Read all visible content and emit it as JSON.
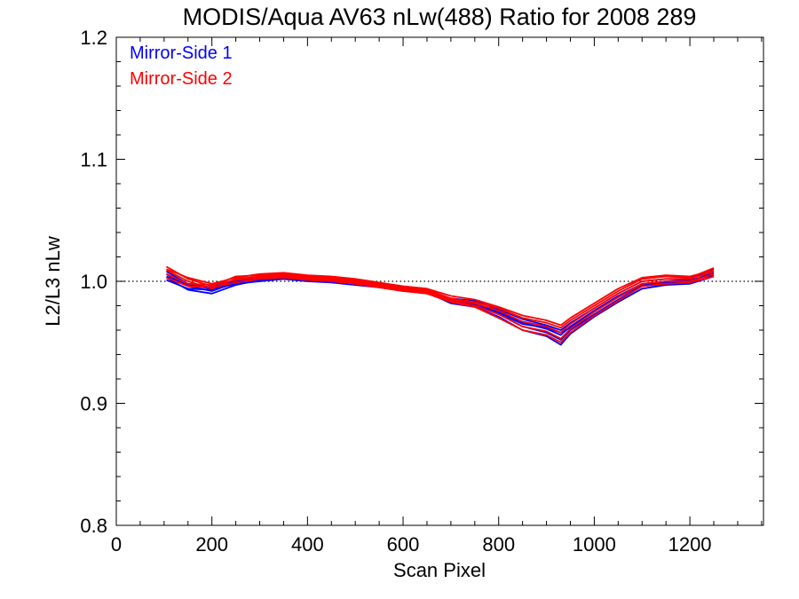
{
  "chart_data": {
    "type": "line",
    "title": "MODIS/Aqua AV63 nLw(488) Ratio for 2008 289",
    "xlabel": "Scan Pixel",
    "ylabel": "L2/L3 nLw",
    "xlim": [
      0,
      1354
    ],
    "ylim": [
      0.8,
      1.2
    ],
    "x_ticks": [
      0,
      200,
      400,
      600,
      800,
      1000,
      1200
    ],
    "x_tick_labels": [
      "0",
      "200",
      "400",
      "600",
      "800",
      "1000",
      "1200"
    ],
    "y_ticks": [
      0.8,
      0.9,
      1.0,
      1.1,
      1.2
    ],
    "y_tick_labels": [
      "0.8",
      "0.9",
      "1.0",
      "1.1",
      "1.2"
    ],
    "reference_line": {
      "y": 1.0,
      "style": "dotted"
    },
    "legend_position": "top-left",
    "x": [
      105,
      150,
      200,
      250,
      300,
      350,
      400,
      450,
      500,
      550,
      600,
      650,
      700,
      750,
      800,
      850,
      900,
      930,
      950,
      1000,
      1050,
      1100,
      1150,
      1200,
      1250
    ],
    "series": [
      {
        "name": "Mirror-Side 1",
        "color": "#0000ff",
        "members": [
          {
            "values": [
              1.003,
              0.993,
              0.99,
              0.997,
              1.001,
              1.003,
              1.001,
              1.0,
              0.998,
              0.996,
              0.993,
              0.99,
              0.983,
              0.98,
              0.973,
              0.963,
              0.958,
              0.952,
              0.96,
              0.973,
              0.985,
              0.996,
              0.998,
              0.999,
              1.008
            ]
          },
          {
            "values": [
              1.006,
              0.996,
              0.992,
              0.999,
              1.002,
              1.004,
              1.002,
              1.001,
              0.999,
              0.997,
              0.994,
              0.992,
              0.985,
              0.982,
              0.975,
              0.966,
              0.961,
              0.956,
              0.963,
              0.976,
              0.988,
              0.998,
              1.0,
              1.001,
              1.005
            ]
          },
          {
            "values": [
              1.008,
              0.998,
              0.995,
              1.001,
              1.003,
              1.005,
              1.003,
              1.002,
              1.0,
              0.998,
              0.995,
              0.993,
              0.986,
              0.984,
              0.977,
              0.969,
              0.964,
              0.96,
              0.966,
              0.978,
              0.99,
              1.0,
              1.002,
              1.002,
              1.01
            ]
          },
          {
            "values": [
              1.001,
              0.994,
              0.993,
              0.998,
              1.0,
              1.002,
              1.0,
              0.999,
              0.997,
              0.995,
              0.992,
              0.991,
              0.982,
              0.979,
              0.971,
              0.96,
              0.955,
              0.948,
              0.957,
              0.971,
              0.983,
              0.994,
              0.997,
              0.998,
              1.004
            ]
          },
          {
            "values": [
              1.004,
              0.997,
              0.994,
              1.0,
              1.002,
              1.003,
              1.002,
              1.001,
              0.999,
              0.997,
              0.993,
              0.991,
              0.984,
              0.981,
              0.974,
              0.965,
              0.962,
              0.958,
              0.962,
              0.975,
              0.987,
              0.997,
              0.999,
              1.0,
              1.007
            ]
          }
        ]
      },
      {
        "name": "Mirror-Side 2",
        "color": "#ff0000",
        "members": [
          {
            "values": [
              1.012,
              1.002,
              0.996,
              1.004,
              1.005,
              1.006,
              1.004,
              1.003,
              1.001,
              0.998,
              0.995,
              0.993,
              0.986,
              0.983,
              0.978,
              0.97,
              0.966,
              0.962,
              0.968,
              0.98,
              0.992,
              1.002,
              1.004,
              1.003,
              1.011
            ]
          },
          {
            "values": [
              1.009,
              1.0,
              0.994,
              1.002,
              1.004,
              1.005,
              1.003,
              1.002,
              1.0,
              0.997,
              0.994,
              0.992,
              0.985,
              0.982,
              0.976,
              0.967,
              0.963,
              0.958,
              0.965,
              0.978,
              0.99,
              1.0,
              1.002,
              1.002,
              1.008
            ]
          },
          {
            "values": [
              1.006,
              0.998,
              0.997,
              1.001,
              1.003,
              1.004,
              1.002,
              1.001,
              0.999,
              0.996,
              0.993,
              0.991,
              0.984,
              0.98,
              0.973,
              0.963,
              0.959,
              0.953,
              0.961,
              0.975,
              0.987,
              0.998,
              1.0,
              1.0,
              1.006
            ]
          },
          {
            "values": [
              1.003,
              0.996,
              0.995,
              0.999,
              1.002,
              1.003,
              1.001,
              1.0,
              0.998,
              0.995,
              0.992,
              0.99,
              0.983,
              0.979,
              0.97,
              0.96,
              0.956,
              0.95,
              0.958,
              0.972,
              0.984,
              0.996,
              0.998,
              0.999,
              1.004
            ]
          },
          {
            "values": [
              1.01,
              1.003,
              0.998,
              1.003,
              1.006,
              1.007,
              1.005,
              1.004,
              1.002,
              0.999,
              0.996,
              0.994,
              0.988,
              0.985,
              0.979,
              0.972,
              0.968,
              0.964,
              0.97,
              0.982,
              0.994,
              1.003,
              1.005,
              1.004,
              1.009
            ]
          }
        ]
      }
    ]
  }
}
